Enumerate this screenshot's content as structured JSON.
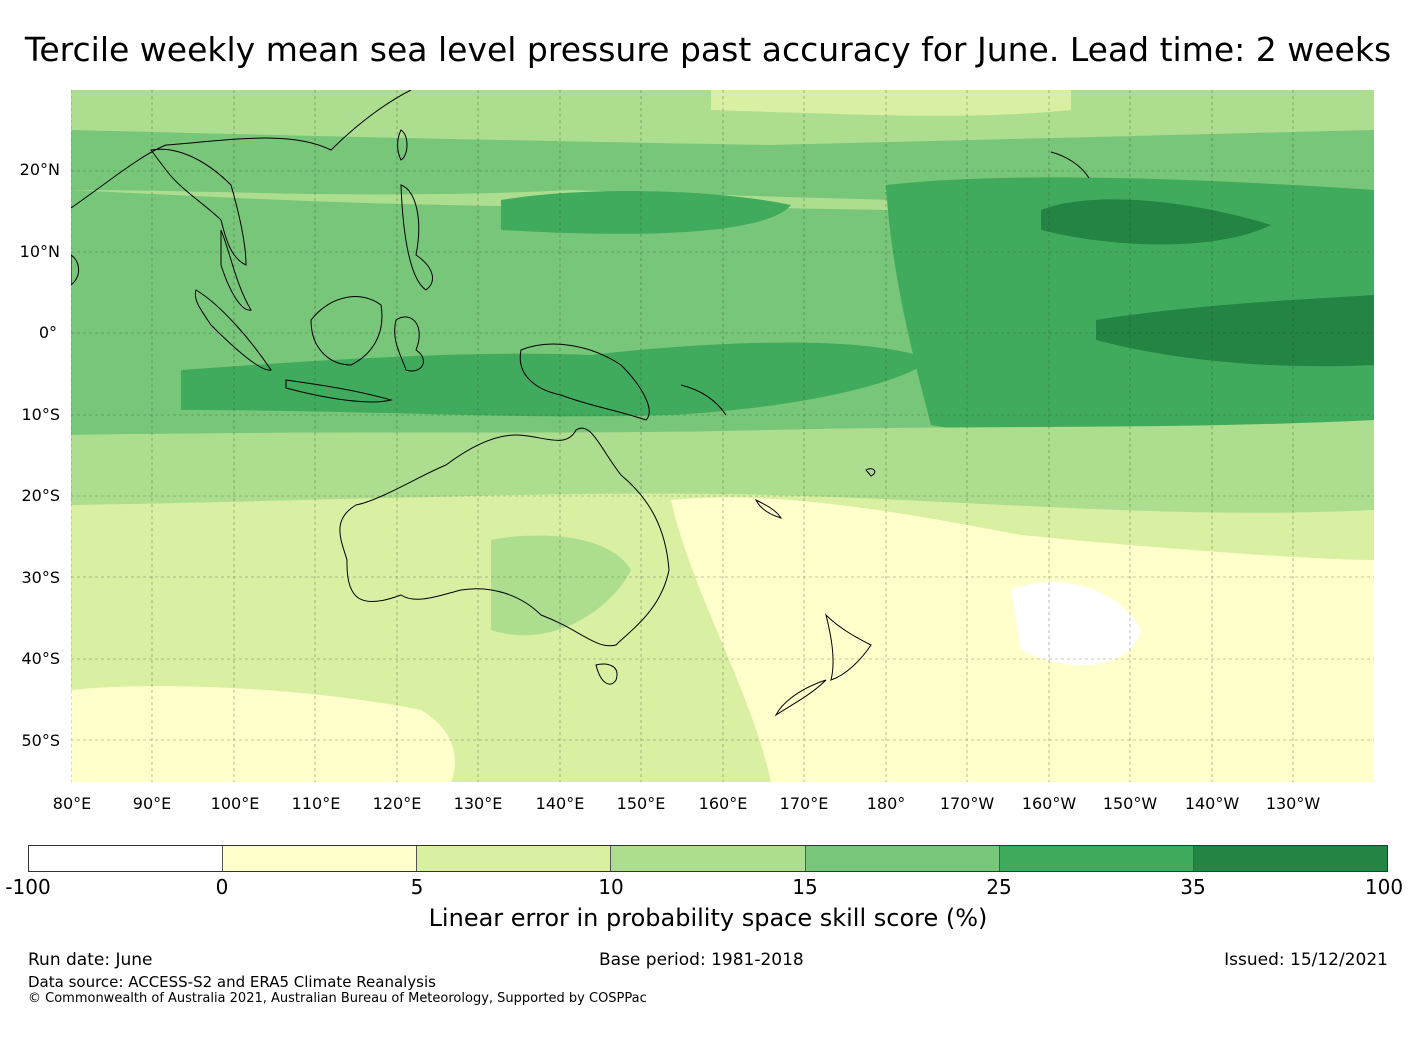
{
  "title": "Tercile weekly mean sea level pressure past accuracy for June. Lead time: 2 weeks",
  "map": {
    "region": "Indo-Pacific / Australia",
    "lat_labels": [
      "20°N",
      "10°N",
      "0°",
      "10°S",
      "20°S",
      "30°S",
      "40°S",
      "50°S"
    ],
    "lon_labels": [
      "80°E",
      "90°E",
      "100°E",
      "110°E",
      "120°E",
      "130°E",
      "140°E",
      "150°E",
      "160°E",
      "170°E",
      "180°",
      "170°W",
      "160°W",
      "150°W",
      "140°W",
      "130°W"
    ],
    "grid": true
  },
  "colorbar": {
    "ticks": [
      "-100",
      "0",
      "5",
      "10",
      "15",
      "25",
      "35",
      "100"
    ],
    "colors": [
      "#ffffff",
      "#ffffcc",
      "#d9f0a3",
      "#addd8e",
      "#78c679",
      "#41ab5d",
      "#238443"
    ],
    "label": "Linear error in probability space skill score (%)"
  },
  "footer": {
    "run_date": "Run date: June",
    "base_period": "Base period: 1981-2018",
    "issued": "Issued: 15/12/2021",
    "data_source": "Data source: ACCESS-S2 and ERA5 Climate Reanalysis",
    "copyright": "© Commonwealth of Australia 2021, Australian Bureau of Meteorology, Supported by COSPPac"
  }
}
